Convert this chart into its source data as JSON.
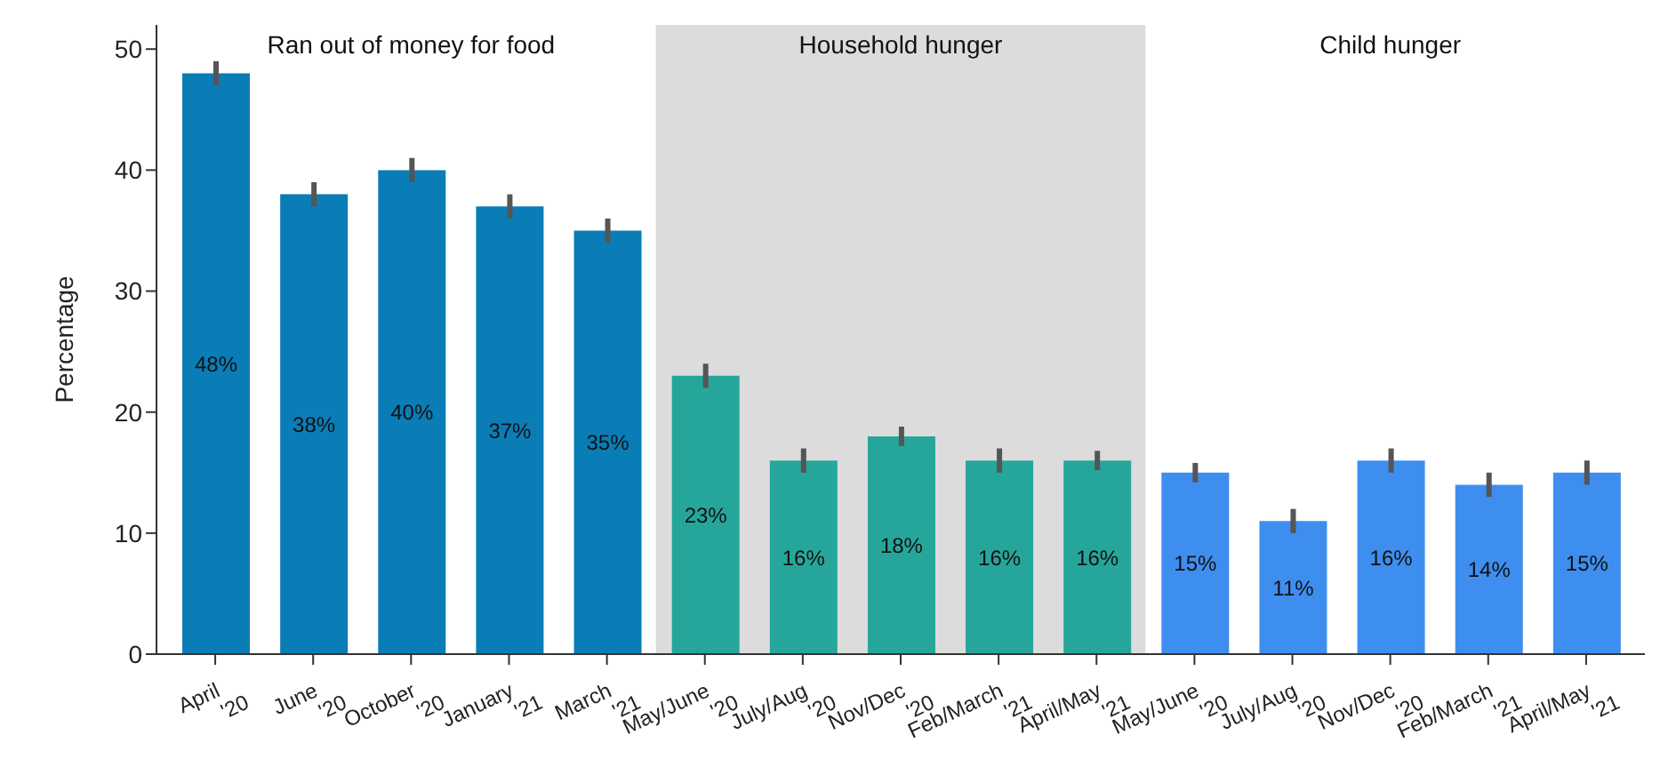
{
  "chart_data": {
    "type": "bar",
    "ylabel": "Percentage",
    "categories": [
      "April '20",
      "June '20",
      "October '20",
      "January '21",
      "March '21",
      "May/June '20",
      "July/Aug '20",
      "Nov/Dec '20",
      "Feb/March '21",
      "April/May '21",
      "May/June '20",
      "July/Aug '20",
      "Nov/Dec '20",
      "Feb/March '21",
      "April/May '21"
    ],
    "values": [
      48,
      38,
      40,
      37,
      35,
      23,
      16,
      18,
      16,
      16,
      15,
      11,
      16,
      14,
      15
    ],
    "colors": [
      "#0a7db6",
      "#0a7db6",
      "#0a7db6",
      "#0a7db6",
      "#0a7db6",
      "#26a69b",
      "#26a69b",
      "#26a69b",
      "#26a69b",
      "#26a69b",
      "#3e8ef0",
      "#3e8ef0",
      "#3e8ef0",
      "#3e8ef0",
      "#3e8ef0"
    ],
    "errors": [
      1,
      1,
      1,
      1,
      1,
      1,
      1,
      0.8,
      1,
      0.8,
      0.8,
      1,
      1,
      1,
      1
    ],
    "value_labels": [
      "48%",
      "38%",
      "40%",
      "37%",
      "35%",
      "23%",
      "16%",
      "18%",
      "16%",
      "16%",
      "15%",
      "11%",
      "16%",
      "14%",
      "15%"
    ],
    "ylim": [
      0,
      52
    ],
    "yticks": [
      0,
      10,
      20,
      30,
      40,
      50
    ],
    "bands": [
      {
        "axis": "x",
        "from": "May/June '20",
        "to": "April/May '21",
        "label": "Household hunger",
        "color": "#dcdcdc"
      }
    ],
    "annotations": [
      "Ran out of money for food",
      "Child hunger"
    ],
    "grid": false,
    "legend": false
  }
}
